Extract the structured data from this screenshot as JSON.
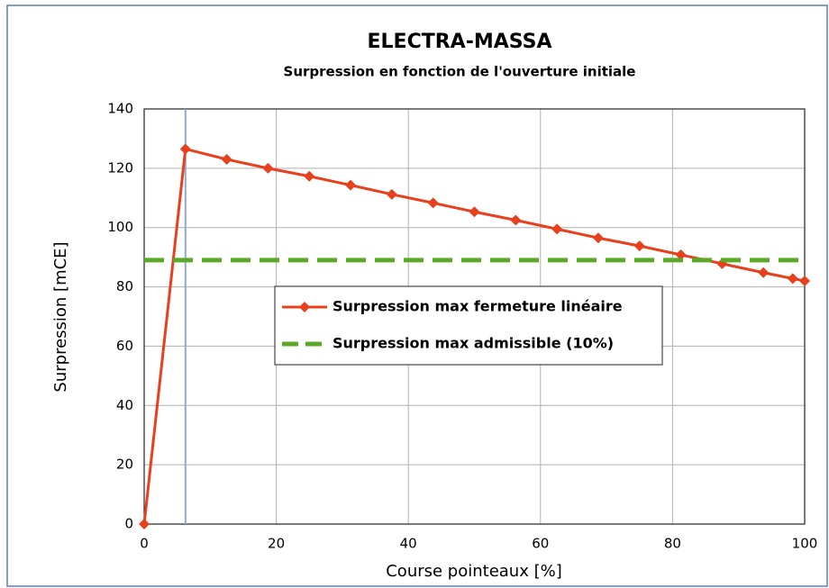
{
  "chart_data": {
    "type": "line",
    "title": "ELECTRA-MASSA",
    "subtitle": "Surpression en fonction de l'ouverture initiale",
    "x_label": "Course pointeaux [%]",
    "y_label": "Surpression [mCE]",
    "xlim": [
      0,
      100
    ],
    "xticks": [
      0,
      20,
      40,
      60,
      80,
      100
    ],
    "ylim": [
      0,
      140
    ],
    "yticks": [
      0,
      20,
      40,
      60,
      80,
      100,
      120,
      140
    ],
    "grid": true,
    "reference_x": 6.25,
    "reference_color": "#8eaadb",
    "series": [
      {
        "name": "Surpression max fermeture linéaire",
        "color": "#e8401c",
        "style": "solid",
        "marker": "diamond",
        "x": [
          0,
          6.25,
          12.5,
          18.75,
          25,
          31.25,
          37.5,
          43.75,
          50,
          56.25,
          62.5,
          68.75,
          75,
          81.25,
          87.5,
          93.75,
          98.2,
          100
        ],
        "values": [
          0,
          126.5,
          123,
          120,
          117.3,
          114.3,
          111.2,
          108.3,
          105.3,
          102.5,
          99.5,
          96.5,
          93.8,
          90.8,
          87.8,
          84.8,
          82.8,
          82
        ]
      },
      {
        "name": "Surpression max admissible (10%)",
        "color": "#5aaa28",
        "style": "dashed",
        "marker": "none",
        "x": [
          0,
          100
        ],
        "values": [
          89,
          89
        ]
      }
    ]
  }
}
